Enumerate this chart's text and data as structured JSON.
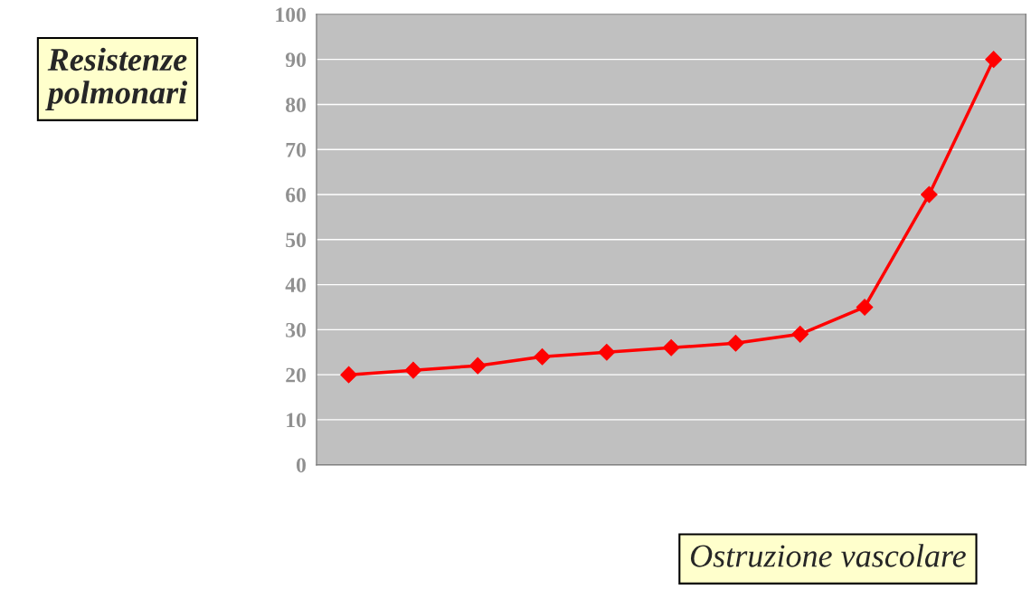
{
  "chart_data": {
    "type": "line",
    "xlabel": "Ostruzione vascolare",
    "ylabel": "Resistenze polmonari",
    "categories": [
      null,
      null,
      null,
      null,
      null,
      null,
      null,
      null,
      null,
      null,
      null
    ],
    "series": [
      {
        "color": "#ff0000",
        "values": [
          20,
          21,
          22,
          24,
          25,
          26,
          27,
          29,
          35,
          60,
          90
        ]
      }
    ],
    "ylim": [
      0,
      100
    ],
    "yticks": [
      0,
      10,
      20,
      30,
      40,
      50,
      60,
      70,
      80,
      90,
      100
    ],
    "grid": "y",
    "marker": "diamond",
    "line_style": "solid",
    "tick_labels": "y"
  }
}
